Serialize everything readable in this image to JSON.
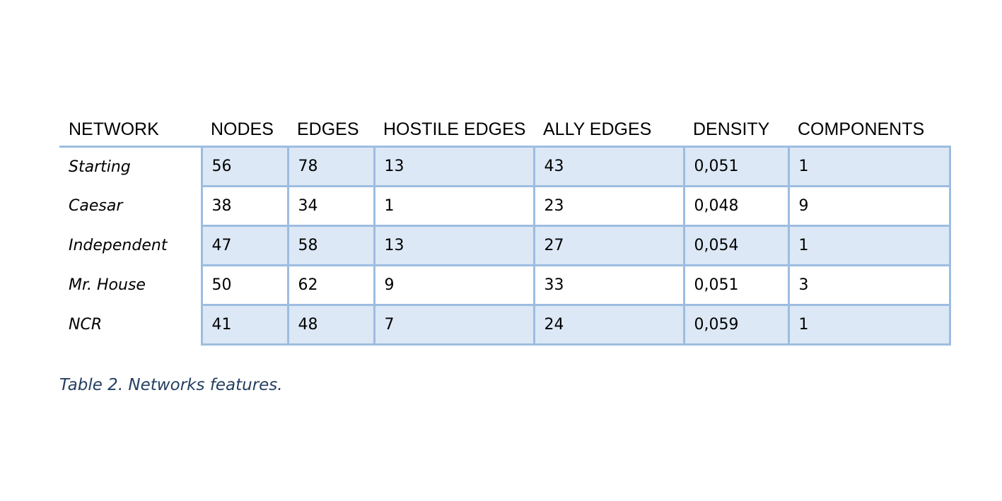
{
  "table": {
    "headers": [
      "NETWORK",
      "NODES",
      "EDGES",
      "HOSTILE EDGES",
      "ALLY EDGES",
      "DENSITY",
      "COMPONENTS"
    ],
    "rows": [
      {
        "network": "Starting",
        "values": [
          "56",
          "78",
          "13",
          "43",
          "0,051",
          "1"
        ]
      },
      {
        "network": "Caesar",
        "values": [
          "38",
          "34",
          "1",
          "23",
          "0,048",
          "9"
        ]
      },
      {
        "network": "Independent",
        "values": [
          "47",
          "58",
          "13",
          "27",
          "0,054",
          "1"
        ]
      },
      {
        "network": "Mr. House",
        "values": [
          "50",
          "62",
          "9",
          "33",
          "0,051",
          "3"
        ]
      },
      {
        "network": "NCR",
        "values": [
          "41",
          "48",
          "7",
          "24",
          "0,059",
          "1"
        ]
      }
    ]
  },
  "caption": "Table 2. Networks features.",
  "colors": {
    "border": "#9dbde0",
    "band": "#dce8f5",
    "caption": "#243f60"
  }
}
